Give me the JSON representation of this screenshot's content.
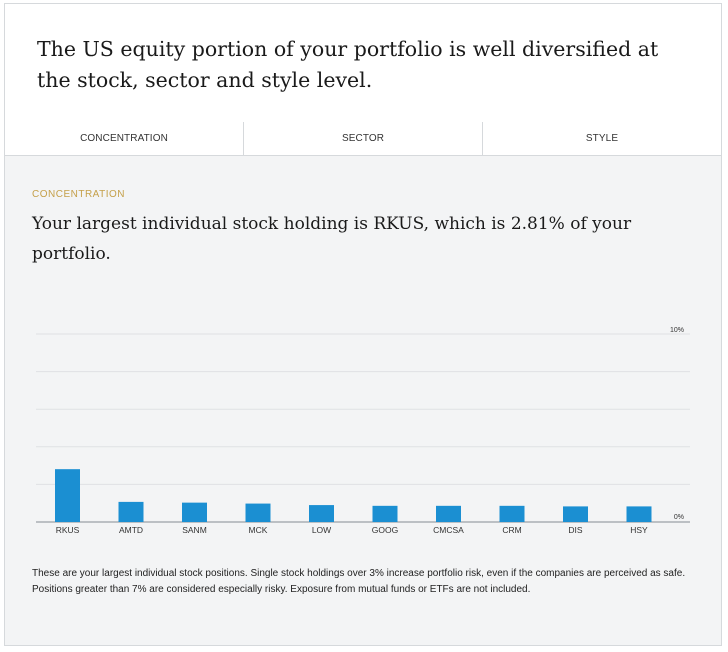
{
  "headline": "The US equity portion of your portfolio is well diversified at the stock, sector and style level.",
  "tabs": [
    {
      "label": "CONCENTRATION"
    },
    {
      "label": "SECTOR"
    },
    {
      "label": "STYLE"
    }
  ],
  "section_label": "CONCENTRATION",
  "sub_headline": "Your largest individual stock holding is RKUS, which is 2.81% of your portfolio.",
  "bar_color": "#1b8fd2",
  "chart_data": {
    "type": "bar",
    "categories": [
      "RKUS",
      "AMTD",
      "SANM",
      "MCK",
      "LOW",
      "GOOG",
      "CMCSA",
      "CRM",
      "DIS",
      "HSY"
    ],
    "values": [
      2.81,
      1.07,
      1.03,
      0.98,
      0.9,
      0.86,
      0.86,
      0.86,
      0.83,
      0.83
    ],
    "ylim": [
      0,
      10
    ],
    "y_tick_labels": {
      "top": "10%",
      "bottom": "0%"
    },
    "grid": true
  },
  "footnote": "These are your largest individual stock positions. Single stock holdings over 3% increase portfolio risk, even if the companies are perceived as safe. Positions greater than 7% are considered especially risky. Exposure from mutual funds or ETFs are not included."
}
